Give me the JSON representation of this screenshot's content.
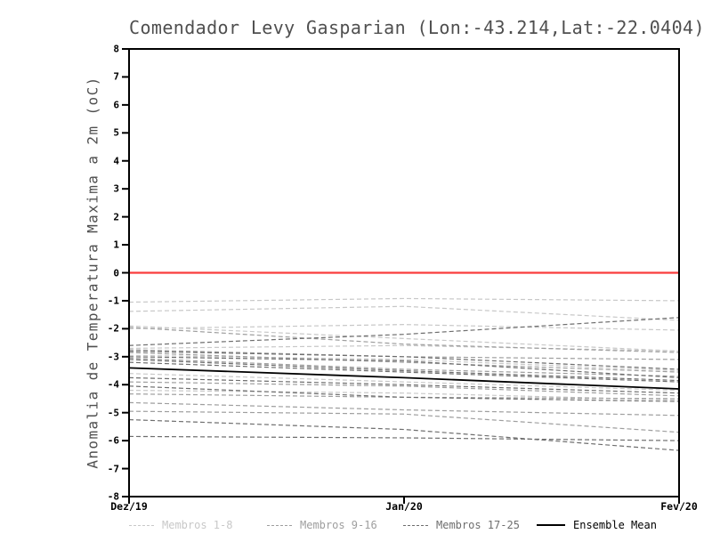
{
  "title": "Comendador Levy Gasparian (Lon:-43.214,Lat:-22.0404)",
  "y_axis": {
    "label": "Anomalia de Temperatura Maxima a 2m (oC)",
    "min": -8,
    "max": 8,
    "ticks": [
      8,
      7,
      6,
      5,
      4,
      3,
      2,
      1,
      0,
      -1,
      -2,
      -3,
      -4,
      -5,
      -6,
      -7,
      -8
    ]
  },
  "x_axis": {
    "ticks": [
      "Dez/19",
      "Jan/20",
      "Fev/20"
    ]
  },
  "legend": [
    {
      "label": "Membros 1-8",
      "color": "#c8c8c8",
      "style": "dashed"
    },
    {
      "label": "Membros 9-16",
      "color": "#9e9e9e",
      "style": "dashed"
    },
    {
      "label": "Membros 17-25",
      "color": "#6e6e6e",
      "style": "dashed"
    },
    {
      "label": "Ensemble Mean",
      "color": "#000000",
      "style": "solid"
    }
  ],
  "colors": {
    "zero_line": "#fa3c3c",
    "frame": "#000000",
    "title_text": "#4f4f4f",
    "tick_text": "#000000"
  },
  "chart_data": {
    "type": "line",
    "title": "Comendador Levy Gasparian (Lon:-43.214,Lat:-22.0404)",
    "xlabel": "",
    "ylabel": "Anomalia de Temperatura Maxima a 2m (oC)",
    "x": [
      "Dez/19",
      "Jan/20",
      "Fev/20"
    ],
    "ylim": [
      -8,
      8
    ],
    "grid": false,
    "legend_position": "bottom",
    "zero_line": 0,
    "groups": [
      {
        "name": "Membros 1-8",
        "color": "#c8c8c8",
        "dash": true
      },
      {
        "name": "Membros 9-16",
        "color": "#9e9e9e",
        "dash": true
      },
      {
        "name": "Membros 17-25",
        "color": "#6e6e6e",
        "dash": true
      },
      {
        "name": "Ensemble Mean",
        "color": "#000000",
        "dash": false
      }
    ],
    "series": [
      {
        "group": 0,
        "values": [
          -1.05,
          -0.92,
          -1.0
        ]
      },
      {
        "group": 0,
        "values": [
          -1.38,
          -1.2,
          -1.7
        ]
      },
      {
        "group": 0,
        "values": [
          -1.9,
          -2.35,
          -2.8
        ]
      },
      {
        "group": 0,
        "values": [
          -2.0,
          -1.85,
          -2.05
        ]
      },
      {
        "group": 0,
        "values": [
          -2.7,
          -2.6,
          -2.8
        ]
      },
      {
        "group": 0,
        "values": [
          -2.95,
          -3.1,
          -3.5
        ]
      },
      {
        "group": 0,
        "values": [
          -3.6,
          -3.9,
          -4.2
        ]
      },
      {
        "group": 0,
        "values": [
          -4.2,
          -4.3,
          -4.55
        ]
      },
      {
        "group": 1,
        "values": [
          -1.95,
          -2.55,
          -2.85
        ]
      },
      {
        "group": 1,
        "values": [
          -2.85,
          -3.2,
          -3.55
        ]
      },
      {
        "group": 1,
        "values": [
          -3.05,
          -3.45,
          -3.7
        ]
      },
      {
        "group": 1,
        "values": [
          -3.9,
          -4.05,
          -4.4
        ]
      },
      {
        "group": 1,
        "values": [
          -4.33,
          -4.45,
          -4.5
        ]
      },
      {
        "group": 1,
        "values": [
          -4.64,
          -4.9,
          -5.1
        ]
      },
      {
        "group": 1,
        "values": [
          -2.75,
          -3.0,
          -3.1
        ]
      },
      {
        "group": 1,
        "values": [
          -4.95,
          -5.05,
          -5.7
        ]
      },
      {
        "group": 2,
        "values": [
          -2.6,
          -2.2,
          -1.6
        ]
      },
      {
        "group": 2,
        "values": [
          -2.8,
          -3.0,
          -3.45
        ]
      },
      {
        "group": 2,
        "values": [
          -3.0,
          -3.15,
          -3.75
        ]
      },
      {
        "group": 2,
        "values": [
          -3.1,
          -3.5,
          -3.85
        ]
      },
      {
        "group": 2,
        "values": [
          -3.2,
          -3.55,
          -3.9
        ]
      },
      {
        "group": 2,
        "values": [
          -3.75,
          -4.0,
          -4.3
        ]
      },
      {
        "group": 2,
        "values": [
          -4.05,
          -4.45,
          -4.6
        ]
      },
      {
        "group": 2,
        "values": [
          -5.25,
          -5.6,
          -6.35
        ]
      },
      {
        "group": 2,
        "values": [
          -5.85,
          -5.9,
          -6.0
        ]
      },
      {
        "group": 3,
        "values": [
          -3.4,
          -3.75,
          -4.15
        ]
      }
    ]
  }
}
